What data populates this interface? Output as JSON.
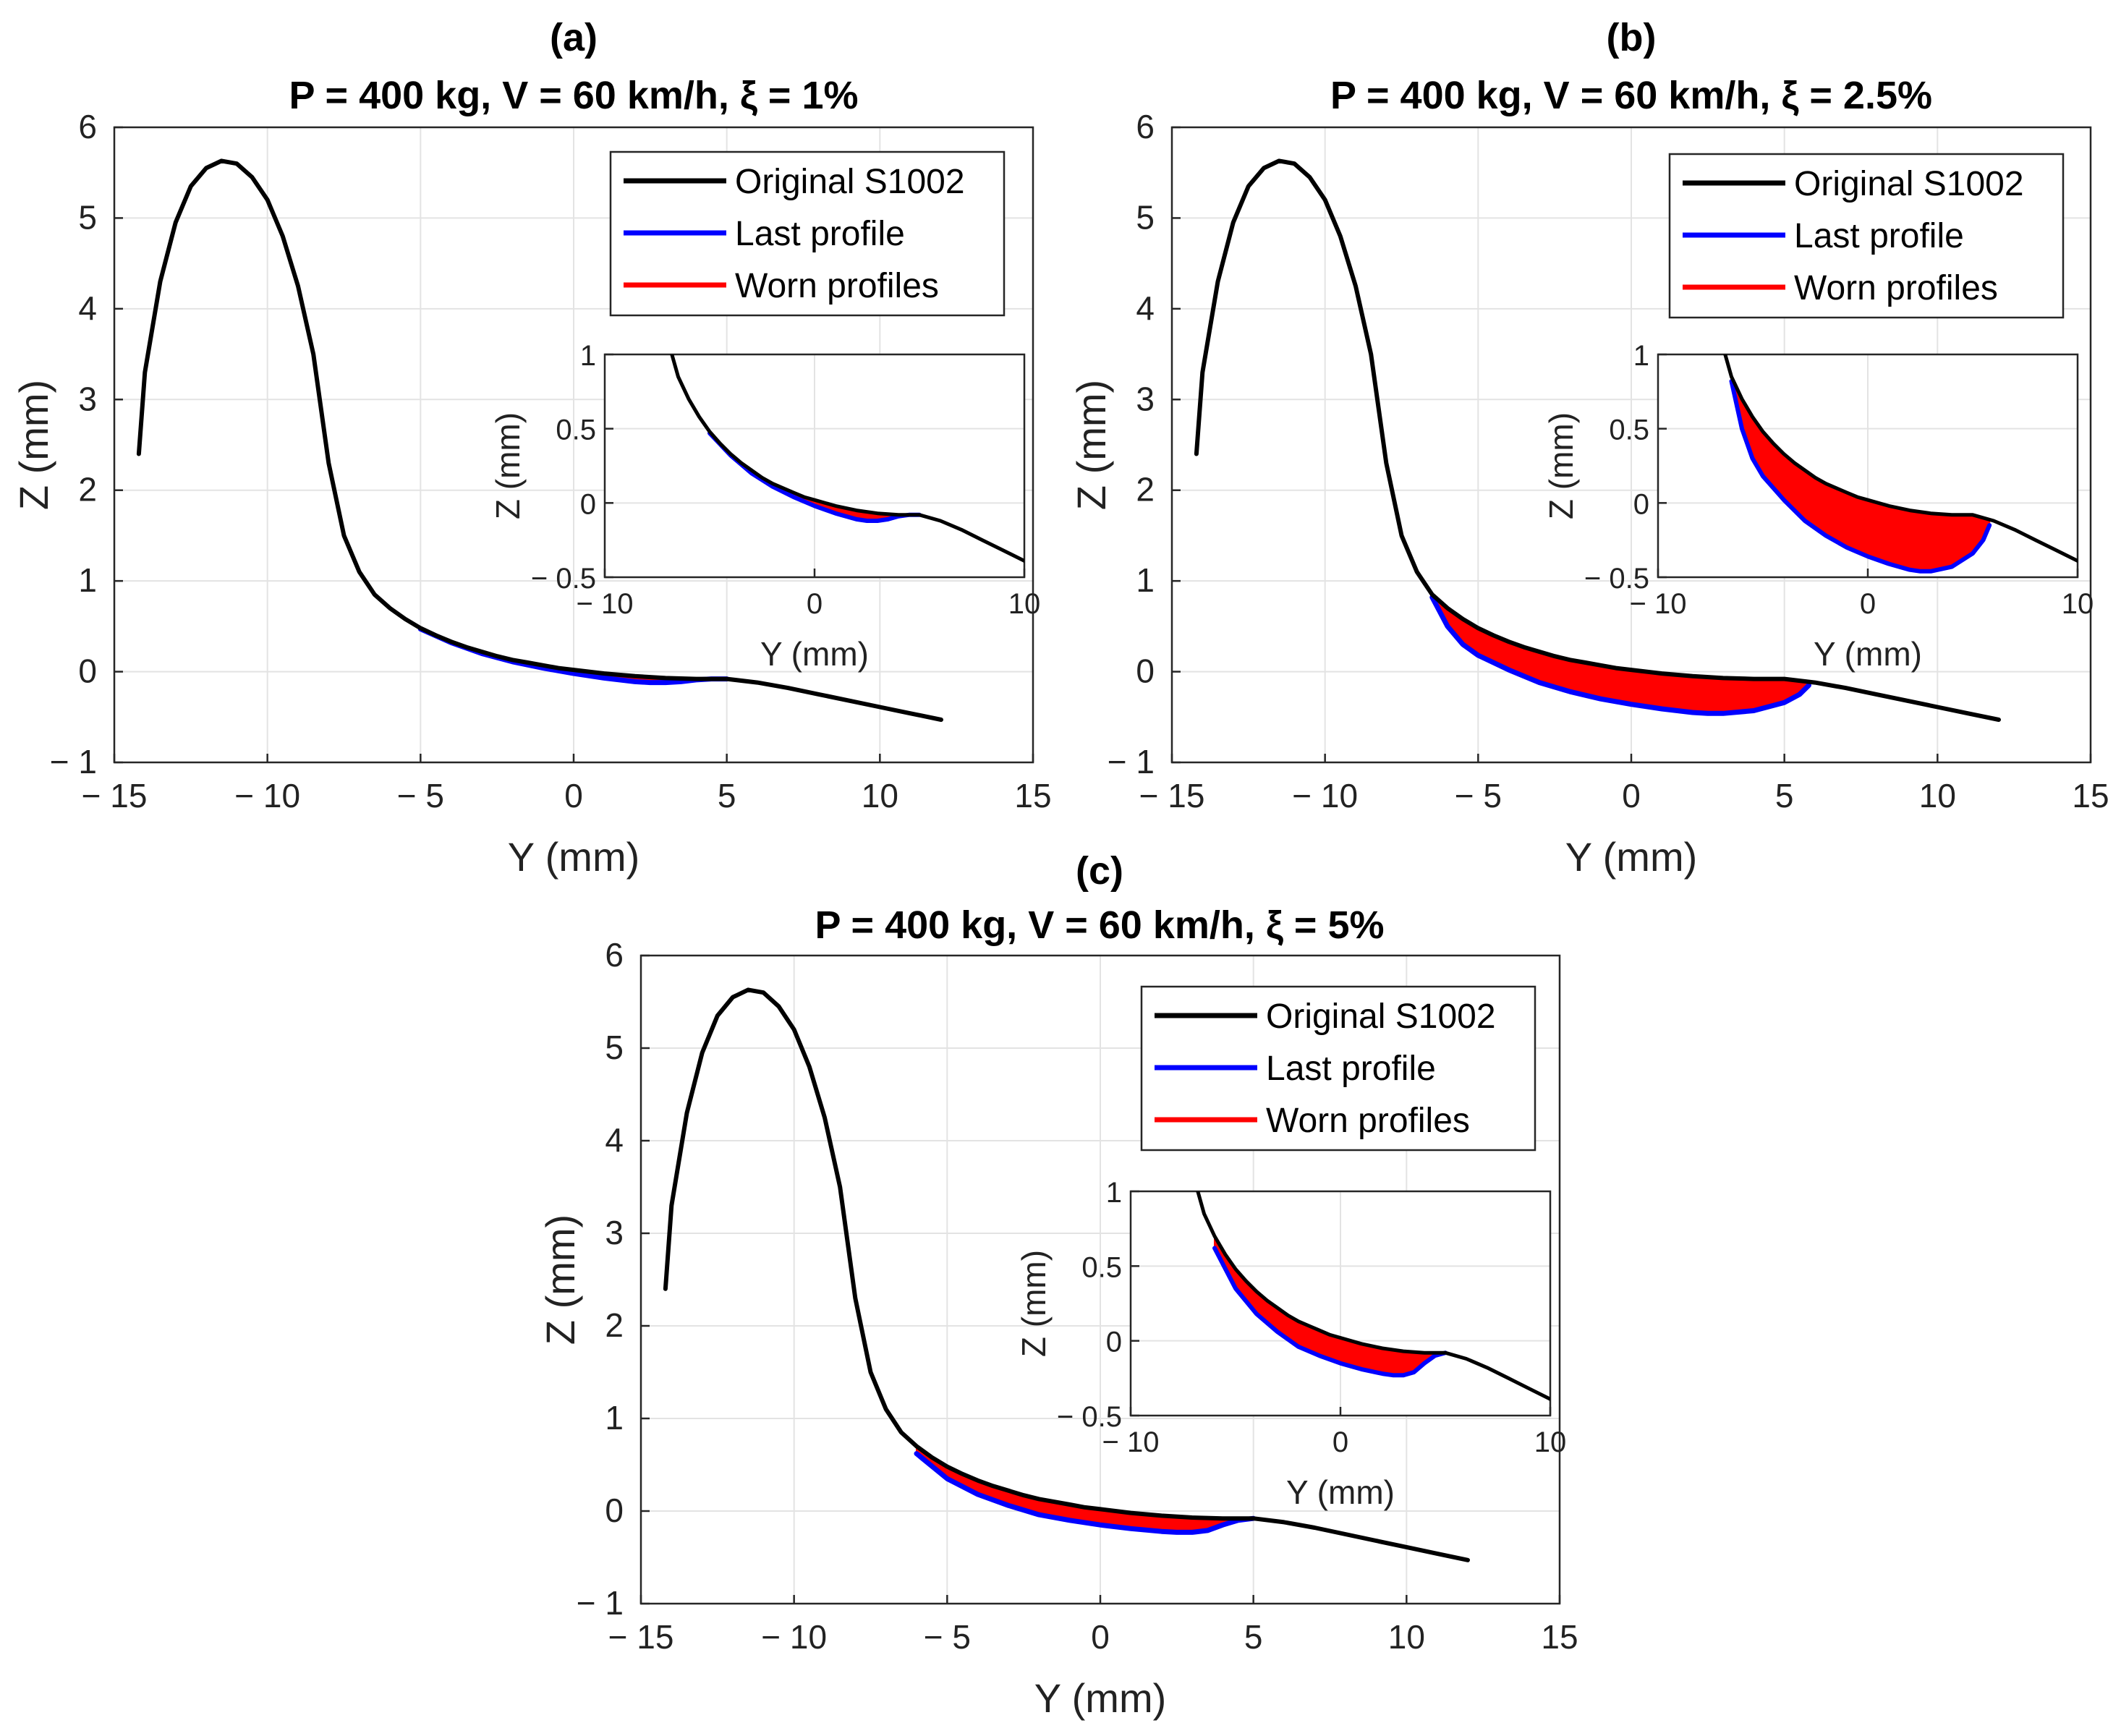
{
  "chart_data": [
    {
      "type": "line",
      "panel": "(a)",
      "title": "P = 400 kg, V = 60 km/h, ξ = 1%",
      "xlabel": "Y (mm)",
      "ylabel": "Z (mm)",
      "xlim": [
        -15,
        15
      ],
      "ylim": [
        -1,
        6
      ],
      "xticks": [
        "− 15",
        "− 10",
        "− 5",
        "0",
        "5",
        "10",
        "15"
      ],
      "yticks": [
        "− 1",
        "0",
        "1",
        "2",
        "3",
        "4",
        "5",
        "6"
      ],
      "grid": true,
      "legend": {
        "position": "top-right",
        "entries": [
          {
            "label": "Original S1002",
            "color": "#000000"
          },
          {
            "label": "Last profile",
            "color": "#0000ff"
          },
          {
            "label": "Worn profiles",
            "color": "#ff0000"
          }
        ]
      },
      "wear_depth_max_mm": 0.09,
      "series": [
        {
          "name": "Original S1002",
          "color": "#000000",
          "x": [
            -14.2,
            -14,
            -13.5,
            -13,
            -12.5,
            -12,
            -11.5,
            -11,
            -10.5,
            -10,
            -9.5,
            -9,
            -8.5,
            -8,
            -7.5,
            -7,
            -6.5,
            -6,
            -5.5,
            -5,
            -4.5,
            -4,
            -3.5,
            -3,
            -2.5,
            -2,
            -1.5,
            -1,
            -0.5,
            0,
            1,
            2,
            3,
            4,
            5,
            6,
            7,
            8,
            9,
            10,
            11,
            12
          ],
          "y": [
            2.4,
            3.3,
            4.3,
            4.95,
            5.35,
            5.55,
            5.63,
            5.6,
            5.45,
            5.2,
            4.8,
            4.25,
            3.5,
            2.3,
            1.5,
            1.1,
            0.85,
            0.7,
            0.58,
            0.48,
            0.4,
            0.33,
            0.27,
            0.22,
            0.17,
            0.13,
            0.1,
            0.07,
            0.04,
            0.02,
            -0.02,
            -0.05,
            -0.07,
            -0.08,
            -0.08,
            -0.12,
            -0.18,
            -0.25,
            -0.32,
            -0.39,
            -0.46,
            -0.53
          ]
        },
        {
          "name": "Last profile",
          "color": "#0000ff",
          "x": [
            -5,
            -4,
            -3,
            -2,
            -1,
            0,
            1,
            2,
            2.5,
            3,
            3.5,
            4,
            4.5,
            5
          ],
          "y": [
            0.47,
            0.32,
            0.2,
            0.11,
            0.04,
            -0.02,
            -0.07,
            -0.11,
            -0.12,
            -0.12,
            -0.11,
            -0.09,
            -0.08,
            -0.08
          ]
        }
      ],
      "inset": {
        "xlabel": "Y (mm)",
        "ylabel": "Z (mm)",
        "xlim": [
          -10,
          10
        ],
        "ylim": [
          -0.5,
          1
        ],
        "xticks": [
          "− 10",
          "0",
          "10"
        ],
        "yticks": [
          "− 0.5",
          "0",
          "0.5",
          "1"
        ]
      }
    },
    {
      "type": "line",
      "panel": "(b)",
      "title": "P = 400 kg, V = 60 km/h, ξ = 2.5%",
      "xlabel": "Y (mm)",
      "ylabel": "Z (mm)",
      "xlim": [
        -15,
        15
      ],
      "ylim": [
        -1,
        6
      ],
      "xticks": [
        "− 15",
        "− 10",
        "− 5",
        "0",
        "5",
        "10",
        "15"
      ],
      "yticks": [
        "− 1",
        "0",
        "1",
        "2",
        "3",
        "4",
        "5",
        "6"
      ],
      "grid": true,
      "legend": {
        "position": "top-right",
        "entries": [
          {
            "label": "Original S1002",
            "color": "#000000"
          },
          {
            "label": "Last profile",
            "color": "#0000ff"
          },
          {
            "label": "Worn profiles",
            "color": "#ff0000"
          }
        ]
      },
      "wear_depth_max_mm": 0.45,
      "series": [
        {
          "name": "Original S1002",
          "color": "#000000",
          "x": [
            -14.2,
            -14,
            -13.5,
            -13,
            -12.5,
            -12,
            -11.5,
            -11,
            -10.5,
            -10,
            -9.5,
            -9,
            -8.5,
            -8,
            -7.5,
            -7,
            -6.5,
            -6,
            -5.5,
            -5,
            -4.5,
            -4,
            -3.5,
            -3,
            -2.5,
            -2,
            -1.5,
            -1,
            -0.5,
            0,
            1,
            2,
            3,
            4,
            5,
            6,
            7,
            8,
            9,
            10,
            11,
            12
          ],
          "y": [
            2.4,
            3.3,
            4.3,
            4.95,
            5.35,
            5.55,
            5.63,
            5.6,
            5.45,
            5.2,
            4.8,
            4.25,
            3.5,
            2.3,
            1.5,
            1.1,
            0.85,
            0.7,
            0.58,
            0.48,
            0.4,
            0.33,
            0.27,
            0.22,
            0.17,
            0.13,
            0.1,
            0.07,
            0.04,
            0.02,
            -0.02,
            -0.05,
            -0.07,
            -0.08,
            -0.08,
            -0.12,
            -0.18,
            -0.25,
            -0.32,
            -0.39,
            -0.46,
            -0.53
          ]
        },
        {
          "name": "Last profile",
          "color": "#0000ff",
          "x": [
            -6.5,
            -6,
            -5.5,
            -5,
            -4,
            -3,
            -2,
            -1,
            0,
            1,
            2,
            2.5,
            3,
            4,
            5,
            5.5,
            5.8
          ],
          "y": [
            0.82,
            0.5,
            0.3,
            0.18,
            0.02,
            -0.12,
            -0.22,
            -0.3,
            -0.36,
            -0.41,
            -0.45,
            -0.46,
            -0.46,
            -0.43,
            -0.34,
            -0.25,
            -0.15
          ]
        }
      ],
      "inset": {
        "xlabel": "Y (mm)",
        "ylabel": "Z (mm)",
        "xlim": [
          -10,
          10
        ],
        "ylim": [
          -0.5,
          1
        ],
        "xticks": [
          "− 10",
          "0",
          "10"
        ],
        "yticks": [
          "− 0.5",
          "0",
          "0.5",
          "1"
        ]
      }
    },
    {
      "type": "line",
      "panel": "(c)",
      "title": "P = 400 kg, V = 60 km/h, ξ = 5%",
      "xlabel": "Y (mm)",
      "ylabel": "Z (mm)",
      "xlim": [
        -15,
        15
      ],
      "ylim": [
        -1,
        6
      ],
      "xticks": [
        "− 15",
        "− 10",
        "− 5",
        "0",
        "5",
        "10",
        "15"
      ],
      "yticks": [
        "− 1",
        "0",
        "1",
        "2",
        "3",
        "4",
        "5",
        "6"
      ],
      "grid": true,
      "legend": {
        "position": "top-right",
        "entries": [
          {
            "label": "Original S1002",
            "color": "#000000"
          },
          {
            "label": "Last profile",
            "color": "#0000ff"
          },
          {
            "label": "Worn profiles",
            "color": "#ff0000"
          }
        ]
      },
      "wear_depth_max_mm": 0.17,
      "series": [
        {
          "name": "Original S1002",
          "color": "#000000",
          "x": [
            -14.2,
            -14,
            -13.5,
            -13,
            -12.5,
            -12,
            -11.5,
            -11,
            -10.5,
            -10,
            -9.5,
            -9,
            -8.5,
            -8,
            -7.5,
            -7,
            -6.5,
            -6,
            -5.5,
            -5,
            -4.5,
            -4,
            -3.5,
            -3,
            -2.5,
            -2,
            -1.5,
            -1,
            -0.5,
            0,
            1,
            2,
            3,
            4,
            5,
            6,
            7,
            8,
            9,
            10,
            11,
            12
          ],
          "y": [
            2.4,
            3.3,
            4.3,
            4.95,
            5.35,
            5.55,
            5.63,
            5.6,
            5.45,
            5.2,
            4.8,
            4.25,
            3.5,
            2.3,
            1.5,
            1.1,
            0.85,
            0.7,
            0.58,
            0.48,
            0.4,
            0.33,
            0.27,
            0.22,
            0.17,
            0.13,
            0.1,
            0.07,
            0.04,
            0.02,
            -0.02,
            -0.05,
            -0.07,
            -0.08,
            -0.08,
            -0.12,
            -0.18,
            -0.25,
            -0.32,
            -0.39,
            -0.46,
            -0.53
          ]
        },
        {
          "name": "Last profile",
          "color": "#0000ff",
          "x": [
            -6,
            -5,
            -4,
            -3,
            -2,
            -1,
            0,
            1,
            2,
            2.5,
            3,
            3.5,
            4,
            4.5,
            5
          ],
          "y": [
            0.62,
            0.35,
            0.18,
            0.06,
            -0.04,
            -0.1,
            -0.15,
            -0.19,
            -0.22,
            -0.23,
            -0.23,
            -0.21,
            -0.15,
            -0.1,
            -0.08
          ]
        }
      ],
      "inset": {
        "xlabel": "Y (mm)",
        "ylabel": "Z (mm)",
        "xlim": [
          -10,
          10
        ],
        "ylim": [
          -0.5,
          1
        ],
        "xticks": [
          "− 10",
          "0",
          "10"
        ],
        "yticks": [
          "− 0.5",
          "0",
          "0.5",
          "1"
        ]
      }
    }
  ]
}
